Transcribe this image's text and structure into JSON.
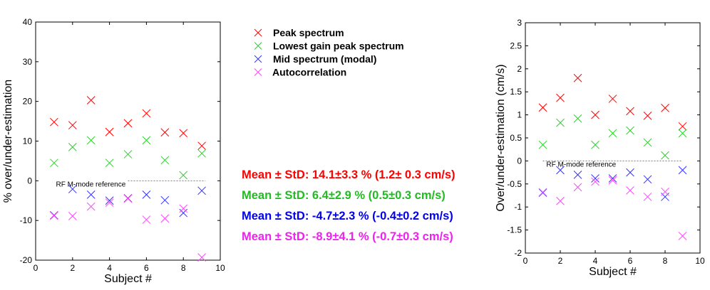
{
  "series_styles": [
    {
      "name": "Peak spectrum",
      "color": "#ff0000"
    },
    {
      "name": "Lowest gain peak spectrum",
      "color": "#33cc33"
    },
    {
      "name": "Mid spectrum (modal)",
      "color": "#3333ff"
    },
    {
      "name": "Autocorrelation",
      "color": "#ff44ff"
    }
  ],
  "stats": [
    {
      "text": "Mean ± StD: 14.1±3.3 % (1.2± 0.3 cm/s)",
      "color": "#ff0000"
    },
    {
      "text": "Mean ± StD:  6.4±2.9 % (0.5±0.3 cm/s)",
      "color": "#22bb22"
    },
    {
      "text": "Mean ± StD: -4.7±2.3 % (-0.4±0.2 cm/s)",
      "color": "#0000ee"
    },
    {
      "text": "Mean ± StD: -8.9±4.1 % (-0.7±0.3 cm/s)",
      "color": "#ee22ee"
    }
  ],
  "chart_data": [
    {
      "type": "scatter",
      "xlabel": "Subject #",
      "ylabel": "% over/under-estimation",
      "xlim": [
        0,
        10
      ],
      "ylim": [
        -20,
        40
      ],
      "xticks": [
        0,
        2,
        4,
        6,
        8,
        10
      ],
      "yticks": [
        -20,
        -10,
        0,
        10,
        20,
        30,
        40
      ],
      "reference_label": "RF M-mode reference",
      "reference_y": 0,
      "x": [
        1,
        2,
        3,
        4,
        5,
        6,
        7,
        8,
        9
      ],
      "series": [
        {
          "name": "Peak spectrum",
          "values": [
            14.8,
            14.0,
            20.3,
            12.3,
            14.5,
            17.0,
            12.2,
            12.0,
            8.8
          ]
        },
        {
          "name": "Lowest gain peak spectrum",
          "values": [
            4.5,
            8.5,
            10.2,
            4.5,
            6.7,
            10.2,
            5.2,
            1.4,
            6.9
          ]
        },
        {
          "name": "Mid spectrum (modal)",
          "values": [
            -8.7,
            -2.1,
            -3.5,
            -5.0,
            -4.4,
            -3.5,
            -4.9,
            -8.1,
            -2.5
          ]
        },
        {
          "name": "Autocorrelation",
          "values": [
            -8.8,
            -8.9,
            -6.5,
            -5.5,
            -4.5,
            -9.8,
            -9.5,
            -7.0,
            -19.3
          ]
        }
      ]
    },
    {
      "type": "scatter",
      "xlabel": "Subject #",
      "ylabel": "Over/under-estimation (cm/s)",
      "xlim": [
        0,
        10
      ],
      "ylim": [
        -2,
        3
      ],
      "xticks": [
        0,
        2,
        4,
        6,
        8,
        10
      ],
      "yticks": [
        -2,
        -1.5,
        -1,
        -0.5,
        0,
        0.5,
        1,
        1.5,
        2,
        2.5,
        3
      ],
      "reference_label": "RF M-mode reference",
      "reference_y": 0,
      "x": [
        1,
        2,
        3,
        4,
        5,
        6,
        7,
        8,
        9
      ],
      "series": [
        {
          "name": "Peak spectrum",
          "values": [
            1.16,
            1.37,
            1.8,
            1.0,
            1.35,
            1.08,
            0.98,
            1.15,
            0.75
          ]
        },
        {
          "name": "Lowest gain peak spectrum",
          "values": [
            0.35,
            0.83,
            0.92,
            0.35,
            0.6,
            0.66,
            0.4,
            0.12,
            0.6
          ]
        },
        {
          "name": "Mid spectrum (modal)",
          "values": [
            -0.69,
            -0.2,
            -0.3,
            -0.38,
            -0.38,
            -0.25,
            -0.4,
            -0.78,
            -0.2
          ]
        },
        {
          "name": "Autocorrelation",
          "values": [
            -0.68,
            -0.87,
            -0.57,
            -0.45,
            -0.42,
            -0.64,
            -0.78,
            -0.67,
            -1.63
          ]
        }
      ]
    }
  ]
}
